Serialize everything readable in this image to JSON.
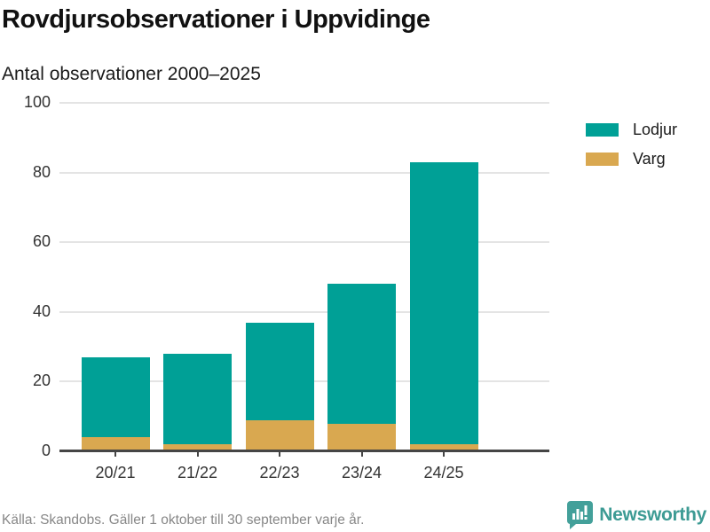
{
  "header": {
    "title": "Rovdjursobservationer i Uppvidinge",
    "subtitle": "Antal observationer 2000–2025"
  },
  "chart_data": {
    "type": "bar",
    "stacked": true,
    "stack_order_bottom_to_top": [
      "Varg",
      "Lodjur"
    ],
    "categories": [
      "20/21",
      "21/22",
      "22/23",
      "23/24",
      "24/25"
    ],
    "series": [
      {
        "name": "Lodjur",
        "color": "#00a096",
        "values": [
          23,
          26,
          28,
          40,
          81
        ]
      },
      {
        "name": "Varg",
        "color": "#d9a850",
        "values": [
          4,
          2,
          9,
          8,
          2
        ]
      }
    ],
    "stacked_totals": [
      27,
      28,
      37,
      48,
      83
    ],
    "title": "Rovdjursobservationer i Uppvidinge",
    "subtitle": "Antal observationer 2000–2025",
    "xlabel": "",
    "ylabel": "",
    "ylim": [
      0,
      100
    ],
    "yticks": [
      0,
      20,
      40,
      60,
      80,
      100
    ],
    "grid": true,
    "legend_position": "right-top"
  },
  "legend": {
    "items": [
      {
        "label": "Lodjur",
        "color": "#00a096"
      },
      {
        "label": "Varg",
        "color": "#d9a850"
      }
    ]
  },
  "footer": {
    "source": "Källa: Skandobs. Gäller 1 oktober till 30 september varje år.",
    "brand": "Newsworthy"
  },
  "colors": {
    "lodjur": "#00a096",
    "varg": "#d9a850",
    "gridline": "#e4e4e4",
    "axis": "#454545",
    "text_dark": "#111111",
    "text_tick": "#333333",
    "text_source": "#878787",
    "brand_teal": "#3d9b94"
  }
}
